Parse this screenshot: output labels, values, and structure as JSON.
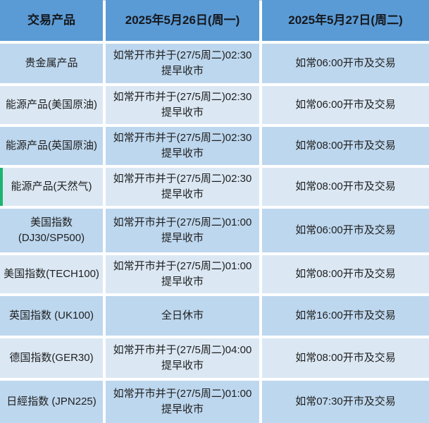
{
  "colors": {
    "header_bg": "#5b9bd5",
    "row_dark": "#bdd7ee",
    "row_light": "#dbe8f4",
    "grid_line": "#ffffff",
    "header_text": "#15181d",
    "body_text": "#1f1f1f",
    "highlight_green": "#1db470"
  },
  "chart_data": {
    "type": "table",
    "columns": [
      "交易产品",
      "2025年5月26日(周一)",
      "2025年5月27日(周二)"
    ],
    "rows": [
      {
        "product": "贵金属产品",
        "may26": "如常开市并于(27/5周二)02:30\n提早收市",
        "may27": "如常06:00开市及交易"
      },
      {
        "product": "能源产品(美国原油)",
        "may26": "如常开市并于(27/5周二)02:30\n提早收市",
        "may27": "如常06:00开市及交易"
      },
      {
        "product": "能源产品(英国原油)",
        "may26": "如常开市并于(27/5周二)02:30\n提早收市",
        "may27": "如常08:00开市及交易"
      },
      {
        "product": "能源产品(天然气)",
        "may26": "如常开市并于(27/5周二)02:30\n提早收市",
        "may27": "如常08:00开市及交易",
        "highlighted": true
      },
      {
        "product": "美国指数\n(DJ30/SP500)",
        "may26": "如常开市并于(27/5周二)01:00\n提早收市",
        "may27": "如常06:00开市及交易"
      },
      {
        "product": "美国指数(TECH100)",
        "may26": "如常开市并于(27/5周二)01:00\n提早收市",
        "may27": "如常08:00开市及交易"
      },
      {
        "product": "英国指数 (UK100)",
        "may26": "全日休市",
        "may27": "如常16:00开市及交易"
      },
      {
        "product": "德国指数(GER30)",
        "may26": "如常开市并于(27/5周二)04:00\n提早收市",
        "may27": "如常08:00开市及交易"
      },
      {
        "product": "日經指数 (JPN225)",
        "may26": "如常开市并于(27/5周二)01:00\n提早收市",
        "may27": "如常07:30开市及交易"
      }
    ]
  }
}
